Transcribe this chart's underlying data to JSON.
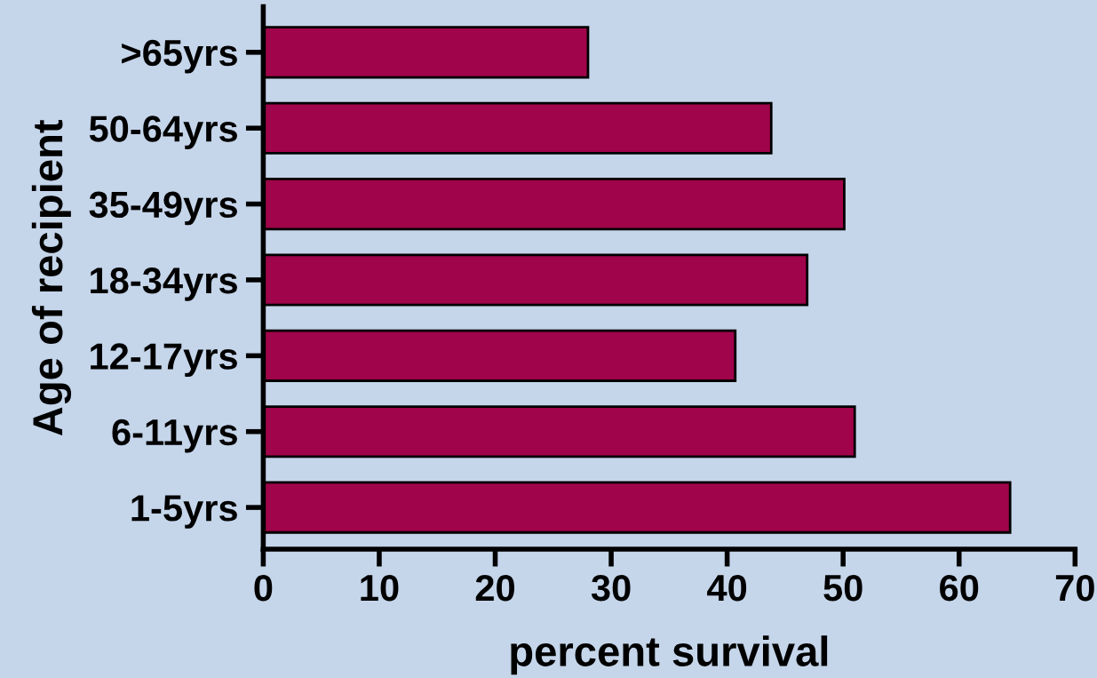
{
  "chart_data": {
    "type": "bar",
    "orientation": "horizontal",
    "categories": [
      ">65yrs",
      "50-64yrs",
      "35-49yrs",
      "18-34yrs",
      "12-17yrs",
      "6-11yrs",
      "1-5yrs"
    ],
    "values": [
      28,
      43.8,
      50.1,
      46.9,
      40.7,
      51,
      64.4
    ],
    "color": "#a0044a",
    "xlabel": "percent survival",
    "ylabel": "Age of recipient",
    "xlim": [
      0,
      70
    ],
    "xticks": [
      0,
      10,
      20,
      30,
      40,
      50,
      60,
      70
    ],
    "grid": false,
    "legend": false
  }
}
